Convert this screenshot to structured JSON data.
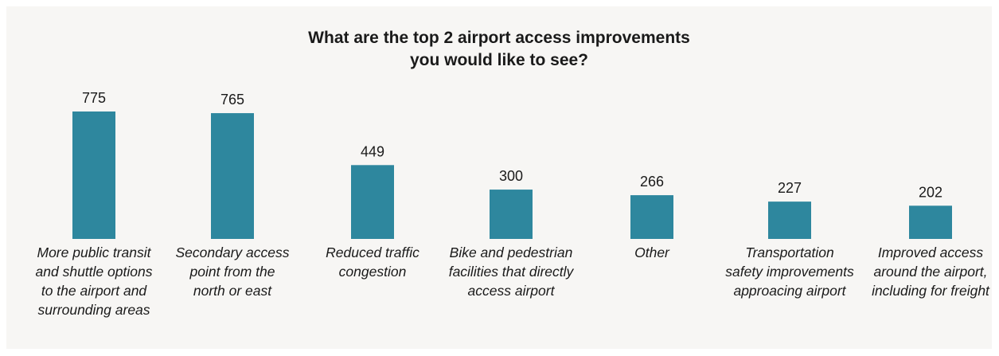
{
  "chart_data": {
    "type": "bar",
    "title_lines": [
      "What are the top 2 airport access improvements",
      "you would like to see?"
    ],
    "categories": [
      [
        "More public transit",
        "and shuttle options",
        "to the airport and",
        "surrounding areas"
      ],
      [
        "Secondary access",
        "point from the",
        "north or east"
      ],
      [
        "Reduced traffic",
        "congestion"
      ],
      [
        "Bike and pedestrian",
        "facilities that directly",
        "access airport"
      ],
      [
        "Other"
      ],
      [
        "Transportation",
        "safety improvements",
        "approacing airport"
      ],
      [
        "Improved access",
        "around the airport,",
        "including for freight"
      ]
    ],
    "values": [
      775,
      765,
      449,
      300,
      266,
      227,
      202
    ],
    "data_labels": [
      "775",
      "765",
      "449",
      "300",
      "266",
      "227",
      "202"
    ],
    "bar_color": "#2e879e",
    "grid": false,
    "legend": "none"
  }
}
